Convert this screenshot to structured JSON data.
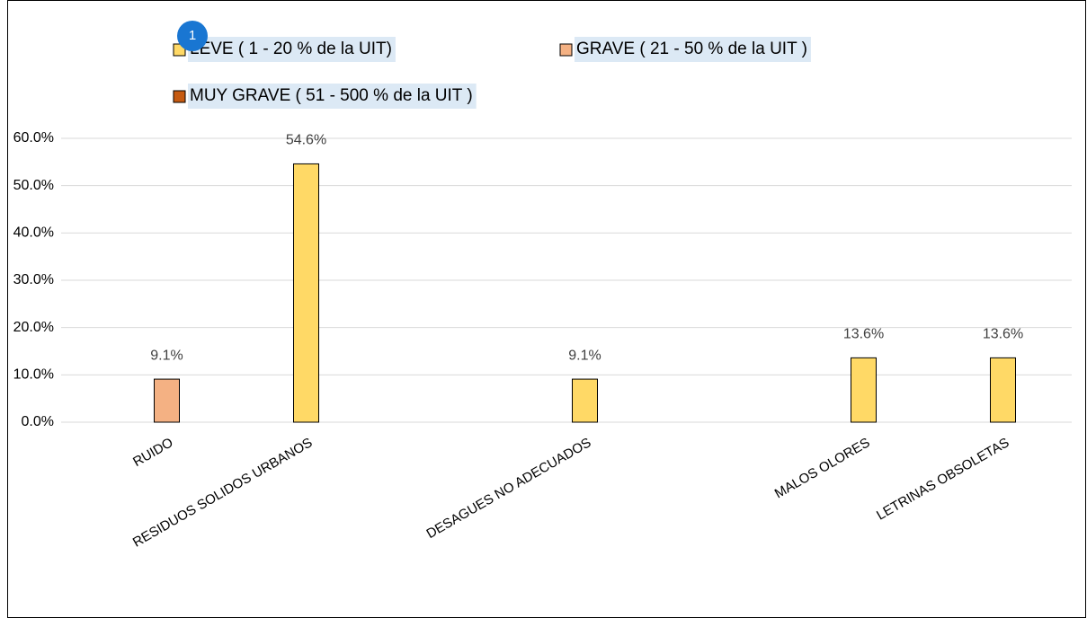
{
  "chart_data": {
    "type": "bar",
    "categories": [
      "RUIDO",
      "RESIDUOS SOLIDOS URBANOS",
      null,
      "DESAGUES NO ADECUADOS",
      null,
      "MALOS OLORES",
      "LETRINAS OBSOLETAS"
    ],
    "series": [
      {
        "name": "LEVE ( 1 - 20 % de la UIT)",
        "color": "#ffd966",
        "values": [
          null,
          54.6,
          null,
          9.1,
          null,
          13.6,
          13.6
        ],
        "value_labels": [
          null,
          "54.6%",
          null,
          "9.1%",
          null,
          "13.6%",
          "13.6%"
        ]
      },
      {
        "name": "GRAVE ( 21 - 50 % de la UIT )",
        "color": "#f4b183",
        "values": [
          9.1,
          null,
          null,
          null,
          null,
          null,
          null
        ],
        "value_labels": [
          "9.1%",
          null,
          null,
          null,
          null,
          null,
          null
        ]
      },
      {
        "name": "MUY GRAVE ( 51 - 500 % de la UIT )",
        "color": "#c55a11",
        "values": [
          null,
          null,
          null,
          null,
          null,
          null,
          null
        ]
      }
    ],
    "ylim": [
      0,
      60
    ],
    "yticks": [
      {
        "value": 0,
        "label": "0.0%"
      },
      {
        "value": 10,
        "label": "10.0%"
      },
      {
        "value": 20,
        "label": "20.0%"
      },
      {
        "value": 30,
        "label": "30.0%"
      },
      {
        "value": 40,
        "label": "40.0%"
      },
      {
        "value": 50,
        "label": "50.0%"
      },
      {
        "value": 60,
        "label": "60.0%"
      }
    ],
    "grid": true,
    "legend": "top",
    "badge": "1"
  }
}
